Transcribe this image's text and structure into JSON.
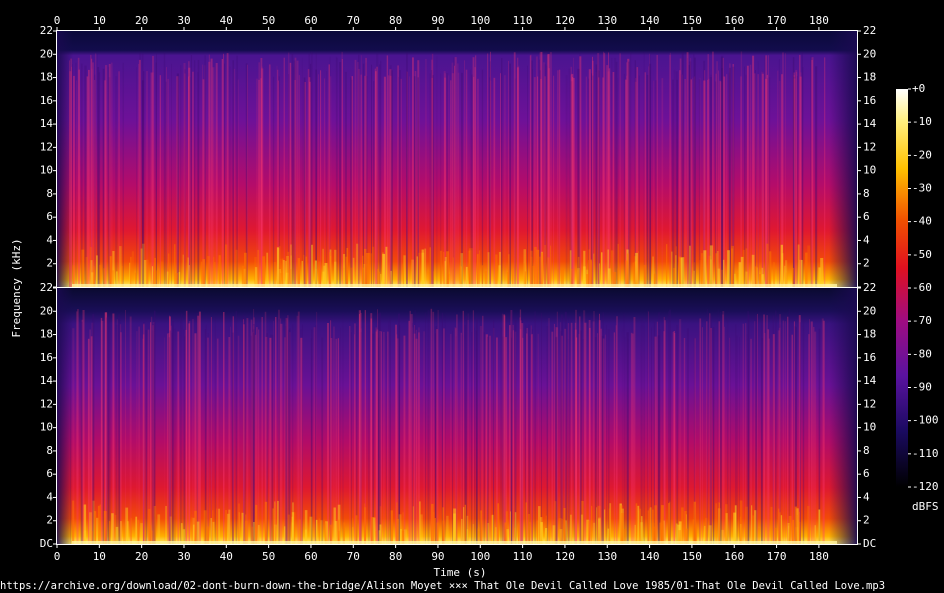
{
  "chart_data": {
    "type": "spectrogram",
    "x_label": "Time (s)",
    "y_label": "Frequency (kHz)",
    "caption": "https://archive.org/download/02-dont-burn-down-the-bridge/Alison Moyet ××× That Ole Devil Called Love 1985/01-That Ole Devil Called Love.mp3",
    "channels": 2,
    "xlim": [
      0,
      189
    ],
    "xticks": [
      0,
      10,
      20,
      30,
      40,
      50,
      60,
      70,
      80,
      90,
      100,
      110,
      120,
      130,
      140,
      150,
      160,
      170,
      180
    ],
    "ylim": [
      0,
      22
    ],
    "yticks": [
      {
        "value": 0,
        "label": "DC"
      },
      2,
      4,
      6,
      8,
      10,
      12,
      14,
      16,
      18,
      20,
      22
    ],
    "colorbar_label": "dBFS",
    "zlim": [
      -120,
      0
    ],
    "zticks": [
      {
        "value": 0,
        "label": "+0"
      },
      -10,
      -20,
      -30,
      -40,
      -50,
      -60,
      -70,
      -80,
      -90,
      -100,
      -110,
      -120
    ]
  }
}
